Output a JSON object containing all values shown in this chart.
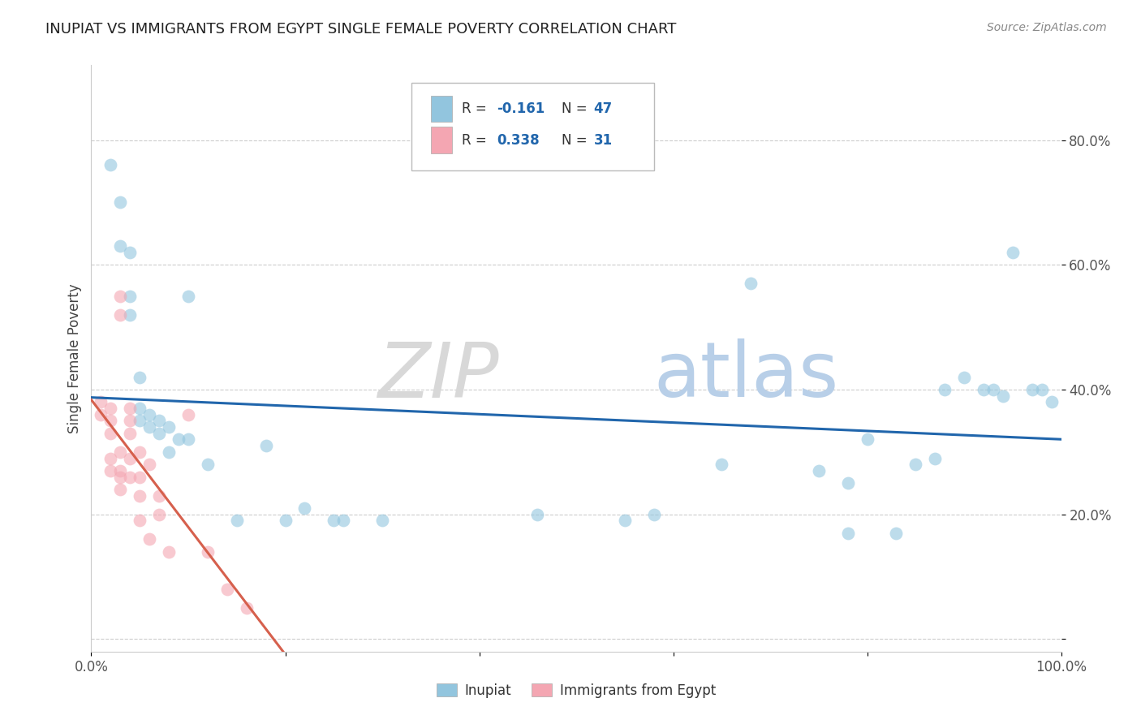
{
  "title": "INUPIAT VS IMMIGRANTS FROM EGYPT SINGLE FEMALE POVERTY CORRELATION CHART",
  "source": "Source: ZipAtlas.com",
  "ylabel": "Single Female Poverty",
  "xlim": [
    0.0,
    1.0
  ],
  "ylim": [
    -0.02,
    0.92
  ],
  "y_ticks": [
    0.0,
    0.2,
    0.4,
    0.6,
    0.8
  ],
  "y_tick_labels_right": [
    "",
    "20.0%",
    "40.0%",
    "60.0%",
    "80.0%"
  ],
  "inupiat_color": "#92c5de",
  "egypt_color": "#f4a6b2",
  "inupiat_edge_color": "#6aafd4",
  "egypt_edge_color": "#e8909a",
  "inupiat_line_color": "#2166ac",
  "egypt_line_color": "#d6604d",
  "legend_R_N_color": "#2166ac",
  "R_inupiat": -0.161,
  "N_inupiat": 47,
  "R_egypt": 0.338,
  "N_egypt": 31,
  "inupiat_points": [
    [
      0.02,
      0.76
    ],
    [
      0.03,
      0.7
    ],
    [
      0.03,
      0.63
    ],
    [
      0.04,
      0.62
    ],
    [
      0.04,
      0.55
    ],
    [
      0.04,
      0.52
    ],
    [
      0.05,
      0.42
    ],
    [
      0.05,
      0.37
    ],
    [
      0.05,
      0.35
    ],
    [
      0.06,
      0.36
    ],
    [
      0.06,
      0.34
    ],
    [
      0.07,
      0.35
    ],
    [
      0.07,
      0.33
    ],
    [
      0.08,
      0.34
    ],
    [
      0.08,
      0.3
    ],
    [
      0.09,
      0.32
    ],
    [
      0.1,
      0.55
    ],
    [
      0.1,
      0.32
    ],
    [
      0.12,
      0.28
    ],
    [
      0.15,
      0.19
    ],
    [
      0.18,
      0.31
    ],
    [
      0.2,
      0.19
    ],
    [
      0.22,
      0.21
    ],
    [
      0.25,
      0.19
    ],
    [
      0.26,
      0.19
    ],
    [
      0.3,
      0.19
    ],
    [
      0.46,
      0.2
    ],
    [
      0.55,
      0.19
    ],
    [
      0.58,
      0.2
    ],
    [
      0.65,
      0.28
    ],
    [
      0.68,
      0.57
    ],
    [
      0.75,
      0.27
    ],
    [
      0.78,
      0.17
    ],
    [
      0.78,
      0.25
    ],
    [
      0.8,
      0.32
    ],
    [
      0.83,
      0.17
    ],
    [
      0.85,
      0.28
    ],
    [
      0.87,
      0.29
    ],
    [
      0.88,
      0.4
    ],
    [
      0.9,
      0.42
    ],
    [
      0.92,
      0.4
    ],
    [
      0.93,
      0.4
    ],
    [
      0.94,
      0.39
    ],
    [
      0.95,
      0.62
    ],
    [
      0.97,
      0.4
    ],
    [
      0.98,
      0.4
    ],
    [
      0.99,
      0.38
    ]
  ],
  "egypt_points": [
    [
      0.01,
      0.38
    ],
    [
      0.01,
      0.36
    ],
    [
      0.02,
      0.37
    ],
    [
      0.02,
      0.35
    ],
    [
      0.02,
      0.33
    ],
    [
      0.02,
      0.29
    ],
    [
      0.02,
      0.27
    ],
    [
      0.03,
      0.55
    ],
    [
      0.03,
      0.52
    ],
    [
      0.03,
      0.3
    ],
    [
      0.03,
      0.27
    ],
    [
      0.03,
      0.26
    ],
    [
      0.03,
      0.24
    ],
    [
      0.04,
      0.37
    ],
    [
      0.04,
      0.35
    ],
    [
      0.04,
      0.33
    ],
    [
      0.04,
      0.29
    ],
    [
      0.04,
      0.26
    ],
    [
      0.05,
      0.3
    ],
    [
      0.05,
      0.26
    ],
    [
      0.05,
      0.23
    ],
    [
      0.05,
      0.19
    ],
    [
      0.06,
      0.28
    ],
    [
      0.06,
      0.16
    ],
    [
      0.07,
      0.23
    ],
    [
      0.07,
      0.2
    ],
    [
      0.08,
      0.14
    ],
    [
      0.1,
      0.36
    ],
    [
      0.12,
      0.14
    ],
    [
      0.14,
      0.08
    ],
    [
      0.16,
      0.05
    ]
  ]
}
